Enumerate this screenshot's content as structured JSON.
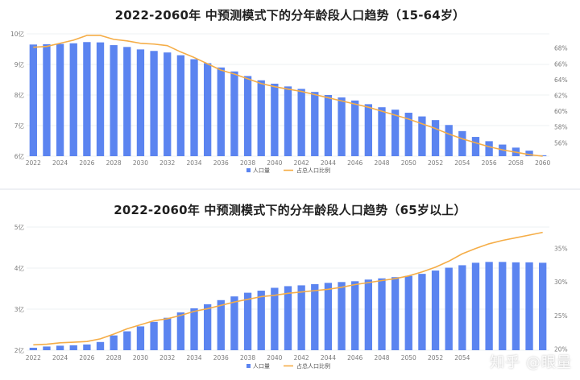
{
  "chart_data": [
    {
      "type": "bar",
      "title": "2022-2060年 中预测模式下的分年龄段人口趋势（15-64岁）",
      "x": [
        2022,
        2023,
        2024,
        2025,
        2026,
        2027,
        2028,
        2029,
        2030,
        2031,
        2032,
        2033,
        2034,
        2035,
        2036,
        2037,
        2038,
        2039,
        2040,
        2041,
        2042,
        2043,
        2044,
        2045,
        2046,
        2047,
        2048,
        2049,
        2050,
        2051,
        2052,
        2053,
        2054,
        2055,
        2056,
        2057,
        2058,
        2059,
        2060
      ],
      "x_tick_labels": [
        "2022",
        "2024",
        "2026",
        "2028",
        "2030",
        "2032",
        "2034",
        "2036",
        "2038",
        "2040",
        "2042",
        "2044",
        "2046",
        "2048",
        "2050",
        "2052",
        "2054",
        "2056",
        "2058",
        "2060"
      ],
      "left_ticks": [
        "6亿",
        "7亿",
        "8亿",
        "9亿",
        "10亿"
      ],
      "right_ticks": [
        "56%",
        "58%",
        "60%",
        "62%",
        "64%",
        "66%",
        "68%"
      ],
      "ylim_left": [
        6,
        10
      ],
      "ylim_right": [
        54.3,
        69.8
      ],
      "series": [
        {
          "name": "人口量",
          "type": "bar",
          "axis": "left",
          "unit": "亿",
          "values": [
            9.65,
            9.66,
            9.67,
            9.69,
            9.73,
            9.72,
            9.63,
            9.57,
            9.49,
            9.44,
            9.39,
            9.3,
            9.17,
            9.04,
            8.9,
            8.77,
            8.62,
            8.48,
            8.37,
            8.28,
            8.2,
            8.1,
            8.0,
            7.92,
            7.82,
            7.7,
            7.6,
            7.52,
            7.42,
            7.3,
            7.18,
            7.02,
            6.82,
            6.63,
            6.49,
            6.38,
            6.28,
            6.18,
            6.03
          ]
        },
        {
          "name": "占总人口比例",
          "type": "line",
          "axis": "right",
          "unit": "%",
          "values": [
            68.1,
            68.2,
            68.6,
            69.0,
            69.6,
            69.6,
            69.1,
            68.9,
            68.6,
            68.5,
            68.3,
            67.5,
            66.8,
            66.0,
            65.2,
            64.7,
            64.1,
            63.5,
            63.1,
            62.8,
            62.5,
            62.1,
            61.7,
            61.3,
            60.9,
            60.5,
            60.0,
            59.5,
            59.0,
            58.4,
            57.8,
            57.1,
            56.5,
            56.0,
            55.5,
            55.1,
            54.8,
            54.5,
            54.3
          ]
        }
      ],
      "legend_position": "bottom"
    },
    {
      "type": "bar",
      "title": "2022-2060年 中预测模式下的分年龄段人口趋势（65岁以上）",
      "x": [
        2022,
        2023,
        2024,
        2025,
        2026,
        2027,
        2028,
        2029,
        2030,
        2031,
        2032,
        2033,
        2034,
        2035,
        2036,
        2037,
        2038,
        2039,
        2040,
        2041,
        2042,
        2043,
        2044,
        2045,
        2046,
        2047,
        2048,
        2049,
        2050,
        2051,
        2052,
        2053,
        2054,
        2055,
        2056,
        2057,
        2058,
        2059,
        2060
      ],
      "x_tick_labels": [
        "2022",
        "2024",
        "2026",
        "2028",
        "2030",
        "2032",
        "2034",
        "2036",
        "2038",
        "2040",
        "2042",
        "2044",
        "2046",
        "2048",
        "2050",
        "2052",
        "2054"
      ],
      "left_ticks": [
        "2亿",
        "3亿",
        "4亿",
        "5亿"
      ],
      "right_ticks": [
        "20%",
        "25%",
        "30%",
        "35%"
      ],
      "ylim_left": [
        2,
        5
      ],
      "ylim_right": [
        19.8,
        38.2
      ],
      "series": [
        {
          "name": "人口量",
          "type": "bar",
          "axis": "left",
          "unit": "亿",
          "values": [
            2.06,
            2.09,
            2.11,
            2.12,
            2.14,
            2.2,
            2.36,
            2.46,
            2.58,
            2.69,
            2.79,
            2.92,
            3.02,
            3.12,
            3.22,
            3.31,
            3.4,
            3.45,
            3.52,
            3.56,
            3.58,
            3.61,
            3.64,
            3.66,
            3.68,
            3.72,
            3.75,
            3.78,
            3.81,
            3.86,
            3.94,
            4.01,
            4.07,
            4.13,
            4.15,
            4.15,
            4.14,
            4.14,
            4.13
          ]
        },
        {
          "name": "占总人口比例",
          "type": "line",
          "axis": "right",
          "unit": "%",
          "values": [
            20.6,
            20.7,
            20.9,
            21.0,
            21.1,
            21.5,
            22.2,
            23.0,
            23.6,
            24.2,
            24.5,
            25.0,
            25.6,
            26.0,
            26.5,
            27.0,
            27.4,
            27.8,
            28.0,
            28.3,
            28.5,
            28.7,
            28.9,
            29.2,
            29.6,
            29.9,
            30.2,
            30.5,
            30.9,
            31.5,
            32.2,
            33.1,
            34.2,
            35.0,
            35.7,
            36.2,
            36.6,
            37.0,
            37.4
          ]
        }
      ],
      "legend_position": "bottom"
    }
  ],
  "colors": {
    "bar": "#5b84f0",
    "line": "#f5ad47",
    "grid": "#e9ebef"
  },
  "watermark": "知乎 @眼量"
}
